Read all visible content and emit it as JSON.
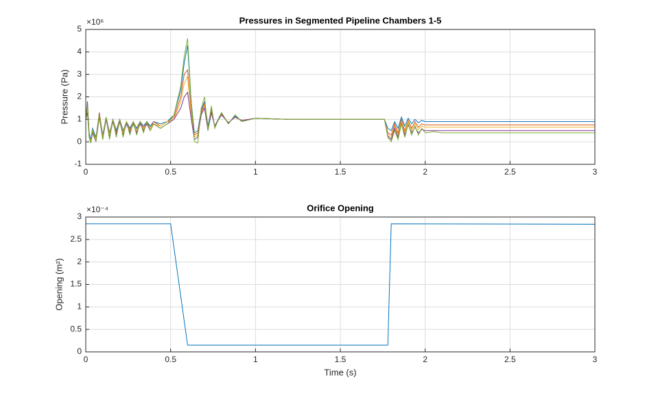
{
  "chart_data": [
    {
      "type": "line",
      "title": "Pressures in Segmented Pipeline Chambers 1-5",
      "y_label": "Pressure (Pa)",
      "y_exponent": "×10⁶",
      "x": [
        0,
        0.01,
        0.02,
        0.03,
        0.04,
        0.06,
        0.08,
        0.1,
        0.12,
        0.14,
        0.16,
        0.18,
        0.2,
        0.22,
        0.24,
        0.26,
        0.28,
        0.3,
        0.32,
        0.34,
        0.36,
        0.38,
        0.4,
        0.44,
        0.48,
        0.52,
        0.56,
        0.58,
        0.6,
        0.62,
        0.64,
        0.66,
        0.68,
        0.7,
        0.72,
        0.74,
        0.76,
        0.8,
        0.84,
        0.88,
        0.92,
        1.0,
        1.2,
        1.5,
        1.76,
        1.78,
        1.8,
        1.82,
        1.84,
        1.86,
        1.88,
        1.9,
        1.92,
        1.94,
        1.96,
        1.98,
        2.0,
        2.05,
        2.1,
        2.2,
        2.5,
        3.0
      ],
      "series": [
        {
          "color": "#0072BD",
          "values": [
            1.0,
            1.8,
            0.4,
            0.1,
            0.6,
            0.2,
            1.3,
            0.3,
            1.1,
            0.4,
            1.0,
            0.5,
            1.0,
            0.5,
            0.9,
            0.6,
            0.9,
            0.6,
            0.9,
            0.7,
            0.9,
            0.7,
            0.9,
            0.8,
            0.9,
            1.2,
            2.3,
            3.5,
            4.3,
            1.9,
            0.4,
            0.5,
            1.4,
            1.8,
            0.7,
            1.5,
            0.7,
            1.3,
            0.8,
            1.15,
            0.9,
            1.05,
            1.0,
            1.0,
            1.0,
            0.6,
            0.5,
            0.9,
            0.6,
            1.1,
            0.7,
            1.05,
            0.8,
            1.0,
            0.85,
            0.95,
            0.9,
            0.9,
            0.9,
            0.9,
            0.9,
            0.9
          ]
        },
        {
          "color": "#D95319",
          "values": [
            1.0,
            1.7,
            0.3,
            0.0,
            0.5,
            0.1,
            1.3,
            0.2,
            1.1,
            0.3,
            1.0,
            0.4,
            1.0,
            0.4,
            0.9,
            0.5,
            0.9,
            0.5,
            0.9,
            0.6,
            0.9,
            0.6,
            0.9,
            0.7,
            0.9,
            1.1,
            2.0,
            3.0,
            3.2,
            1.5,
            0.3,
            0.4,
            1.3,
            1.7,
            0.6,
            1.4,
            0.7,
            1.25,
            0.85,
            1.1,
            0.95,
            1.05,
            1.0,
            1.0,
            1.0,
            0.4,
            0.3,
            0.8,
            0.4,
            1.0,
            0.5,
            0.95,
            0.6,
            0.9,
            0.65,
            0.8,
            0.75,
            0.75,
            0.75,
            0.75,
            0.75,
            0.75
          ]
        },
        {
          "color": "#EDB120",
          "values": [
            1.0,
            1.5,
            0.3,
            0.0,
            0.5,
            0.1,
            1.2,
            0.2,
            1.0,
            0.3,
            1.0,
            0.3,
            0.9,
            0.4,
            0.9,
            0.4,
            0.9,
            0.5,
            0.8,
            0.5,
            0.8,
            0.6,
            0.8,
            0.7,
            0.9,
            1.0,
            1.8,
            2.6,
            2.9,
            1.3,
            0.2,
            0.3,
            1.2,
            1.6,
            0.6,
            1.3,
            0.7,
            1.2,
            0.85,
            1.1,
            0.95,
            1.05,
            1.0,
            1.0,
            1.0,
            0.3,
            0.2,
            0.7,
            0.3,
            0.9,
            0.4,
            0.9,
            0.5,
            0.8,
            0.55,
            0.7,
            0.65,
            0.65,
            0.65,
            0.65,
            0.65,
            0.65
          ]
        },
        {
          "color": "#7E2F8E",
          "values": [
            1.0,
            1.3,
            0.2,
            -0.05,
            0.4,
            0.0,
            1.1,
            0.1,
            1.0,
            0.2,
            0.9,
            0.3,
            0.9,
            0.3,
            0.8,
            0.4,
            0.8,
            0.4,
            0.8,
            0.5,
            0.8,
            0.5,
            0.8,
            0.6,
            0.8,
            1.0,
            1.5,
            2.0,
            2.2,
            1.1,
            0.1,
            0.2,
            1.2,
            1.5,
            0.5,
            1.3,
            0.7,
            1.2,
            0.85,
            1.1,
            0.95,
            1.05,
            1.0,
            1.0,
            1.0,
            0.25,
            0.1,
            0.6,
            0.2,
            0.8,
            0.3,
            0.75,
            0.4,
            0.65,
            0.4,
            0.55,
            0.5,
            0.5,
            0.5,
            0.5,
            0.5,
            0.5
          ]
        },
        {
          "color": "#77AC30",
          "values": [
            1.0,
            1.6,
            0.2,
            -0.05,
            0.5,
            0.0,
            1.2,
            0.1,
            1.1,
            0.1,
            1.0,
            0.2,
            1.0,
            0.2,
            0.9,
            0.3,
            0.9,
            0.3,
            0.9,
            0.4,
            0.9,
            0.5,
            0.8,
            0.6,
            0.8,
            1.2,
            2.5,
            3.8,
            4.6,
            2.0,
            0.0,
            -0.05,
            1.5,
            2.0,
            0.5,
            1.6,
            0.6,
            1.3,
            0.8,
            1.2,
            0.9,
            1.05,
            1.0,
            1.0,
            1.0,
            0.2,
            0.0,
            0.5,
            0.1,
            0.8,
            0.2,
            0.8,
            0.3,
            0.7,
            0.3,
            0.6,
            0.4,
            0.45,
            0.4,
            0.4,
            0.4,
            0.4
          ]
        }
      ],
      "xlim": [
        0,
        3
      ],
      "xticks": [
        0,
        0.5,
        1,
        1.5,
        2,
        2.5,
        3
      ],
      "ylim": [
        -1,
        5
      ],
      "yticks": [
        -1,
        0,
        1,
        2,
        3,
        4,
        5
      ],
      "grid": true
    },
    {
      "type": "line",
      "title": "Orifice Opening",
      "y_label": "Opening (m²)",
      "x_label": "Time (s)",
      "y_exponent": "×10⁻⁴",
      "x": [
        0,
        0.5,
        0.6,
        1.78,
        1.8,
        3
      ],
      "series": [
        {
          "color": "#0072BD",
          "values": [
            2.85,
            2.85,
            0.15,
            0.15,
            2.85,
            2.84
          ]
        }
      ],
      "xlim": [
        0,
        3
      ],
      "xticks": [
        0,
        0.5,
        1,
        1.5,
        2,
        2.5,
        3
      ],
      "ylim": [
        0,
        3
      ],
      "yticks": [
        0,
        0.5,
        1,
        1.5,
        2,
        2.5,
        3
      ],
      "grid": true
    }
  ]
}
